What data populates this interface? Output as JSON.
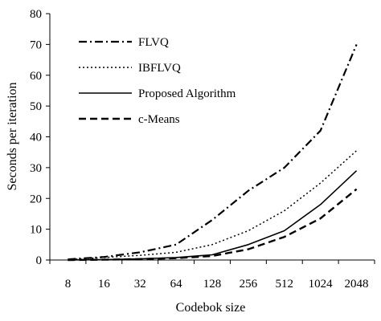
{
  "chart_data": {
    "type": "line",
    "title": "",
    "xlabel": "Codebok size",
    "ylabel": "Seconds per iteration",
    "categories": [
      "8",
      "16",
      "32",
      "64",
      "128",
      "256",
      "512",
      "1024",
      "2048"
    ],
    "ylim": [
      0,
      80
    ],
    "yticks": [
      "0",
      "10",
      "20",
      "30",
      "40",
      "50",
      "60",
      "70",
      "80"
    ],
    "grid": false,
    "legend_position": "top-left",
    "series": [
      {
        "name": "FLVQ",
        "line_style": "dash-dot",
        "color": "#000000",
        "values": [
          0.2,
          1.0,
          2.5,
          5.0,
          13.0,
          22.5,
          30.0,
          42.0,
          70.0
        ]
      },
      {
        "name": "IBFLVQ",
        "line_style": "dotted",
        "color": "#000000",
        "values": [
          0.1,
          0.8,
          1.5,
          2.5,
          5.0,
          9.5,
          16.0,
          25.0,
          35.5
        ]
      },
      {
        "name": "Proposed Algorithm",
        "line_style": "solid",
        "color": "#000000",
        "values": [
          0.0,
          0.1,
          0.4,
          0.8,
          1.7,
          5.0,
          9.5,
          18.0,
          29.0
        ]
      },
      {
        "name": "c-Means",
        "line_style": "dashed",
        "color": "#000000",
        "values": [
          0.0,
          0.1,
          0.3,
          0.6,
          1.3,
          3.5,
          7.5,
          13.5,
          23.0
        ]
      }
    ]
  }
}
